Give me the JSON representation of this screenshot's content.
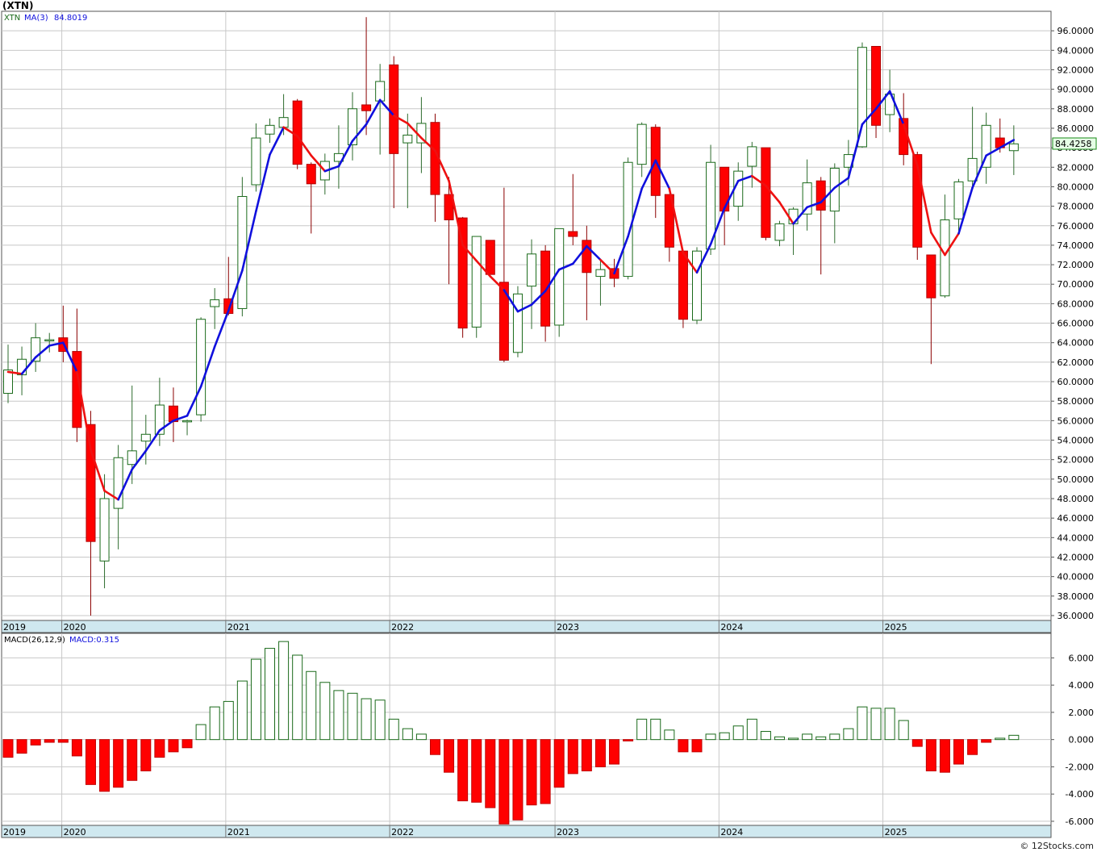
{
  "title": "(XTN)",
  "watermark": "© 12Stocks.com",
  "colors": {
    "up": "#1a6a1a",
    "down": "#ff0000",
    "ma_up": "#1010dd",
    "ma_down": "#ee1111",
    "grid": "#c8c8c8",
    "axis_band": "#cfe8ef",
    "price_box": "#e6ffe6"
  },
  "chart_data": [
    {
      "type": "candlestick",
      "legend": {
        "ticker": "XTN",
        "ma_label": "MA(3)",
        "ma_value": "84.8019"
      },
      "last_price_label": "84.4258",
      "ylim": [
        35.5,
        98
      ],
      "yticks": [
        "36.0000",
        "38.0000",
        "40.0000",
        "42.0000",
        "44.0000",
        "46.0000",
        "48.0000",
        "50.0000",
        "52.0000",
        "54.0000",
        "56.0000",
        "58.0000",
        "60.0000",
        "62.0000",
        "64.0000",
        "66.0000",
        "68.0000",
        "70.0000",
        "72.0000",
        "74.0000",
        "76.0000",
        "78.0000",
        "80.0000",
        "82.0000",
        "84.0000",
        "86.0000",
        "88.0000",
        "90.0000",
        "92.0000",
        "94.0000",
        "96.0000"
      ],
      "x_labels": [
        {
          "label": "2019",
          "index": -0.85
        },
        {
          "label": "2020",
          "index": 3.9
        },
        {
          "label": "2021",
          "index": 15.8
        },
        {
          "label": "2022",
          "index": 27.7
        },
        {
          "label": "2023",
          "index": 39.7
        },
        {
          "label": "2024",
          "index": 51.6
        },
        {
          "label": "2025",
          "index": 63.5
        }
      ],
      "candles": [
        {
          "o": 58.8,
          "h": 63.8,
          "l": 57.8,
          "c": 61.2
        },
        {
          "o": 60.7,
          "h": 63.6,
          "l": 58.6,
          "c": 62.3
        },
        {
          "o": 62.1,
          "h": 66.0,
          "l": 61.0,
          "c": 64.5
        },
        {
          "o": 64.3,
          "h": 65.0,
          "l": 63.0,
          "c": 64.3
        },
        {
          "o": 64.5,
          "h": 67.8,
          "l": 62.0,
          "c": 63.1
        },
        {
          "o": 63.1,
          "h": 67.5,
          "l": 53.8,
          "c": 55.3
        },
        {
          "o": 55.6,
          "h": 57.0,
          "l": 36.0,
          "c": 43.6
        },
        {
          "o": 41.6,
          "h": 50.5,
          "l": 38.8,
          "c": 48.0
        },
        {
          "o": 47.0,
          "h": 53.5,
          "l": 42.8,
          "c": 52.2
        },
        {
          "o": 51.5,
          "h": 59.6,
          "l": 49.5,
          "c": 52.9
        },
        {
          "o": 53.9,
          "h": 56.6,
          "l": 51.5,
          "c": 54.6
        },
        {
          "o": 54.6,
          "h": 60.4,
          "l": 53.4,
          "c": 57.6
        },
        {
          "o": 57.5,
          "h": 59.4,
          "l": 53.8,
          "c": 55.9
        },
        {
          "o": 55.9,
          "h": 56.1,
          "l": 54.5,
          "c": 56.0
        },
        {
          "o": 56.6,
          "h": 66.6,
          "l": 55.9,
          "c": 66.4
        },
        {
          "o": 67.7,
          "h": 69.6,
          "l": 65.4,
          "c": 68.4
        },
        {
          "o": 68.5,
          "h": 72.8,
          "l": 66.8,
          "c": 67.0
        },
        {
          "o": 67.5,
          "h": 81.0,
          "l": 66.7,
          "c": 79.0
        },
        {
          "o": 80.2,
          "h": 86.5,
          "l": 79.5,
          "c": 85.0
        },
        {
          "o": 85.4,
          "h": 87.0,
          "l": 84.5,
          "c": 86.3
        },
        {
          "o": 86.1,
          "h": 89.5,
          "l": 85.3,
          "c": 87.1
        },
        {
          "o": 88.8,
          "h": 89.0,
          "l": 81.8,
          "c": 82.3
        },
        {
          "o": 82.3,
          "h": 82.5,
          "l": 75.2,
          "c": 80.3
        },
        {
          "o": 80.7,
          "h": 83.4,
          "l": 79.2,
          "c": 82.6
        },
        {
          "o": 82.6,
          "h": 86.3,
          "l": 79.8,
          "c": 83.4
        },
        {
          "o": 84.3,
          "h": 89.7,
          "l": 82.7,
          "c": 88.0
        },
        {
          "o": 88.4,
          "h": 97.4,
          "l": 85.3,
          "c": 87.8
        },
        {
          "o": 88.8,
          "h": 92.6,
          "l": 83.3,
          "c": 90.8
        },
        {
          "o": 92.5,
          "h": 93.4,
          "l": 77.8,
          "c": 83.4
        },
        {
          "o": 84.5,
          "h": 87.5,
          "l": 77.8,
          "c": 85.3
        },
        {
          "o": 84.5,
          "h": 89.2,
          "l": 81.4,
          "c": 86.5
        },
        {
          "o": 86.6,
          "h": 87.5,
          "l": 76.4,
          "c": 79.2
        },
        {
          "o": 79.2,
          "h": 81.0,
          "l": 70.0,
          "c": 76.6
        },
        {
          "o": 76.8,
          "h": 76.9,
          "l": 64.5,
          "c": 65.5
        },
        {
          "o": 65.6,
          "h": 74.9,
          "l": 64.5,
          "c": 74.9
        },
        {
          "o": 74.5,
          "h": 74.5,
          "l": 71.0,
          "c": 71.0
        },
        {
          "o": 70.2,
          "h": 79.9,
          "l": 62.0,
          "c": 62.2
        },
        {
          "o": 63.0,
          "h": 69.8,
          "l": 62.5,
          "c": 69.0
        },
        {
          "o": 69.8,
          "h": 74.6,
          "l": 65.4,
          "c": 73.1
        },
        {
          "o": 73.4,
          "h": 74.0,
          "l": 64.1,
          "c": 65.7
        },
        {
          "o": 65.8,
          "h": 75.7,
          "l": 64.6,
          "c": 75.7
        },
        {
          "o": 75.4,
          "h": 81.3,
          "l": 74.0,
          "c": 74.9
        },
        {
          "o": 74.5,
          "h": 76.0,
          "l": 66.3,
          "c": 71.2
        },
        {
          "o": 70.8,
          "h": 72.6,
          "l": 67.8,
          "c": 71.5
        },
        {
          "o": 71.6,
          "h": 72.6,
          "l": 69.7,
          "c": 70.6
        },
        {
          "o": 70.8,
          "h": 83.0,
          "l": 70.5,
          "c": 82.5
        },
        {
          "o": 82.3,
          "h": 86.6,
          "l": 81.0,
          "c": 86.4
        },
        {
          "o": 86.1,
          "h": 86.4,
          "l": 76.8,
          "c": 79.1
        },
        {
          "o": 79.2,
          "h": 79.2,
          "l": 72.3,
          "c": 73.8
        },
        {
          "o": 73.4,
          "h": 73.4,
          "l": 65.5,
          "c": 66.4
        },
        {
          "o": 66.3,
          "h": 73.8,
          "l": 65.9,
          "c": 73.4
        },
        {
          "o": 73.6,
          "h": 84.3,
          "l": 73.0,
          "c": 82.5
        },
        {
          "o": 82.0,
          "h": 82.0,
          "l": 74.0,
          "c": 77.5
        },
        {
          "o": 78.0,
          "h": 82.5,
          "l": 76.5,
          "c": 81.6
        },
        {
          "o": 82.1,
          "h": 84.6,
          "l": 79.9,
          "c": 84.1
        },
        {
          "o": 84.0,
          "h": 84.0,
          "l": 74.5,
          "c": 74.8
        },
        {
          "o": 74.5,
          "h": 76.5,
          "l": 73.9,
          "c": 76.2
        },
        {
          "o": 76.2,
          "h": 77.9,
          "l": 73.0,
          "c": 77.7
        },
        {
          "o": 77.2,
          "h": 82.8,
          "l": 75.5,
          "c": 80.4
        },
        {
          "o": 80.6,
          "h": 81.0,
          "l": 71.0,
          "c": 77.6
        },
        {
          "o": 77.5,
          "h": 82.4,
          "l": 74.2,
          "c": 81.9
        },
        {
          "o": 82.0,
          "h": 84.8,
          "l": 80.1,
          "c": 83.3
        },
        {
          "o": 84.1,
          "h": 94.8,
          "l": 84.0,
          "c": 94.3
        },
        {
          "o": 94.4,
          "h": 94.4,
          "l": 85.0,
          "c": 86.3
        },
        {
          "o": 87.4,
          "h": 92.0,
          "l": 85.6,
          "c": 89.5
        },
        {
          "o": 87.0,
          "h": 89.6,
          "l": 82.2,
          "c": 83.3
        },
        {
          "o": 83.3,
          "h": 83.6,
          "l": 72.5,
          "c": 73.8
        },
        {
          "o": 73.0,
          "h": 73.0,
          "l": 61.8,
          "c": 68.6
        },
        {
          "o": 68.8,
          "h": 79.2,
          "l": 68.6,
          "c": 76.6
        },
        {
          "o": 76.7,
          "h": 80.8,
          "l": 75.5,
          "c": 80.5
        },
        {
          "o": 80.6,
          "h": 88.2,
          "l": 79.7,
          "c": 82.9
        },
        {
          "o": 82.0,
          "h": 87.6,
          "l": 80.3,
          "c": 86.3
        },
        {
          "o": 85.0,
          "h": 87.0,
          "l": 83.5,
          "c": 84.0
        },
        {
          "o": 83.7,
          "h": 86.3,
          "l": 81.2,
          "c": 84.4
        }
      ],
      "ma3": [
        61.0,
        60.8,
        62.5,
        63.7,
        64.0,
        61.0,
        53.0,
        48.8,
        47.9,
        51.0,
        52.9,
        55.0,
        56.0,
        56.5,
        59.5,
        63.6,
        67.3,
        71.4,
        77.5,
        83.3,
        86.1,
        85.2,
        83.2,
        81.6,
        82.1,
        84.7,
        86.4,
        88.9,
        87.3,
        86.5,
        85.0,
        83.7,
        80.6,
        74.0,
        72.4,
        70.8,
        69.4,
        67.2,
        67.9,
        69.3,
        71.5,
        72.1,
        73.9,
        72.5,
        71.1,
        74.9,
        79.8,
        82.7,
        79.8,
        73.2,
        71.2,
        74.1,
        77.8,
        80.6,
        81.1,
        80.1,
        78.4,
        76.2,
        77.9,
        78.4,
        79.9,
        80.9,
        86.4,
        88.0,
        89.8,
        86.4,
        82.2,
        75.3,
        73.0,
        75.2,
        79.9,
        83.2,
        84.0,
        84.8
      ],
      "ma_direction_down": [
        true,
        false,
        false,
        false,
        false,
        true,
        true,
        true,
        false,
        false,
        false,
        false,
        false,
        false,
        false,
        false,
        false,
        false,
        false,
        false,
        true,
        true,
        true,
        false,
        false,
        false,
        false,
        false,
        true,
        true,
        true,
        true,
        true,
        true,
        true,
        true,
        false,
        false,
        false,
        false,
        false,
        false,
        false,
        true,
        false,
        false,
        false,
        false,
        true,
        true,
        false,
        false,
        false,
        false,
        true,
        true,
        true,
        false,
        false,
        false,
        false,
        false,
        false,
        false,
        false,
        true,
        true,
        true,
        true,
        false,
        false,
        false,
        false,
        false
      ]
    },
    {
      "type": "bar",
      "legend": {
        "name": "MACD(26,12,9)",
        "value_label": "MACD:0.315"
      },
      "ylim": [
        -6.3,
        7.8
      ],
      "yticks": [
        "-6.000",
        "-4.000",
        "-2.000",
        "0.000",
        "2.000",
        "4.000",
        "6.000"
      ],
      "values": [
        -1.3,
        -1.0,
        -0.4,
        -0.2,
        -0.2,
        -1.2,
        -3.3,
        -3.8,
        -3.5,
        -3.0,
        -2.3,
        -1.3,
        -0.9,
        -0.6,
        1.1,
        2.4,
        2.8,
        4.3,
        5.9,
        6.7,
        7.2,
        6.2,
        5.0,
        4.2,
        3.6,
        3.4,
        3.0,
        2.9,
        1.5,
        0.8,
        0.4,
        -1.1,
        -2.4,
        -4.5,
        -4.6,
        -5.0,
        -6.2,
        -5.9,
        -4.8,
        -4.7,
        -3.5,
        -2.5,
        -2.3,
        -2.0,
        -1.8,
        -0.1,
        1.5,
        1.5,
        0.7,
        -0.9,
        -0.9,
        0.4,
        0.5,
        1.0,
        1.5,
        0.6,
        0.2,
        0.1,
        0.4,
        0.2,
        0.4,
        0.8,
        2.4,
        2.3,
        2.3,
        1.4,
        -0.5,
        -2.3,
        -2.4,
        -1.8,
        -1.1,
        -0.2,
        0.1,
        0.315
      ]
    }
  ]
}
